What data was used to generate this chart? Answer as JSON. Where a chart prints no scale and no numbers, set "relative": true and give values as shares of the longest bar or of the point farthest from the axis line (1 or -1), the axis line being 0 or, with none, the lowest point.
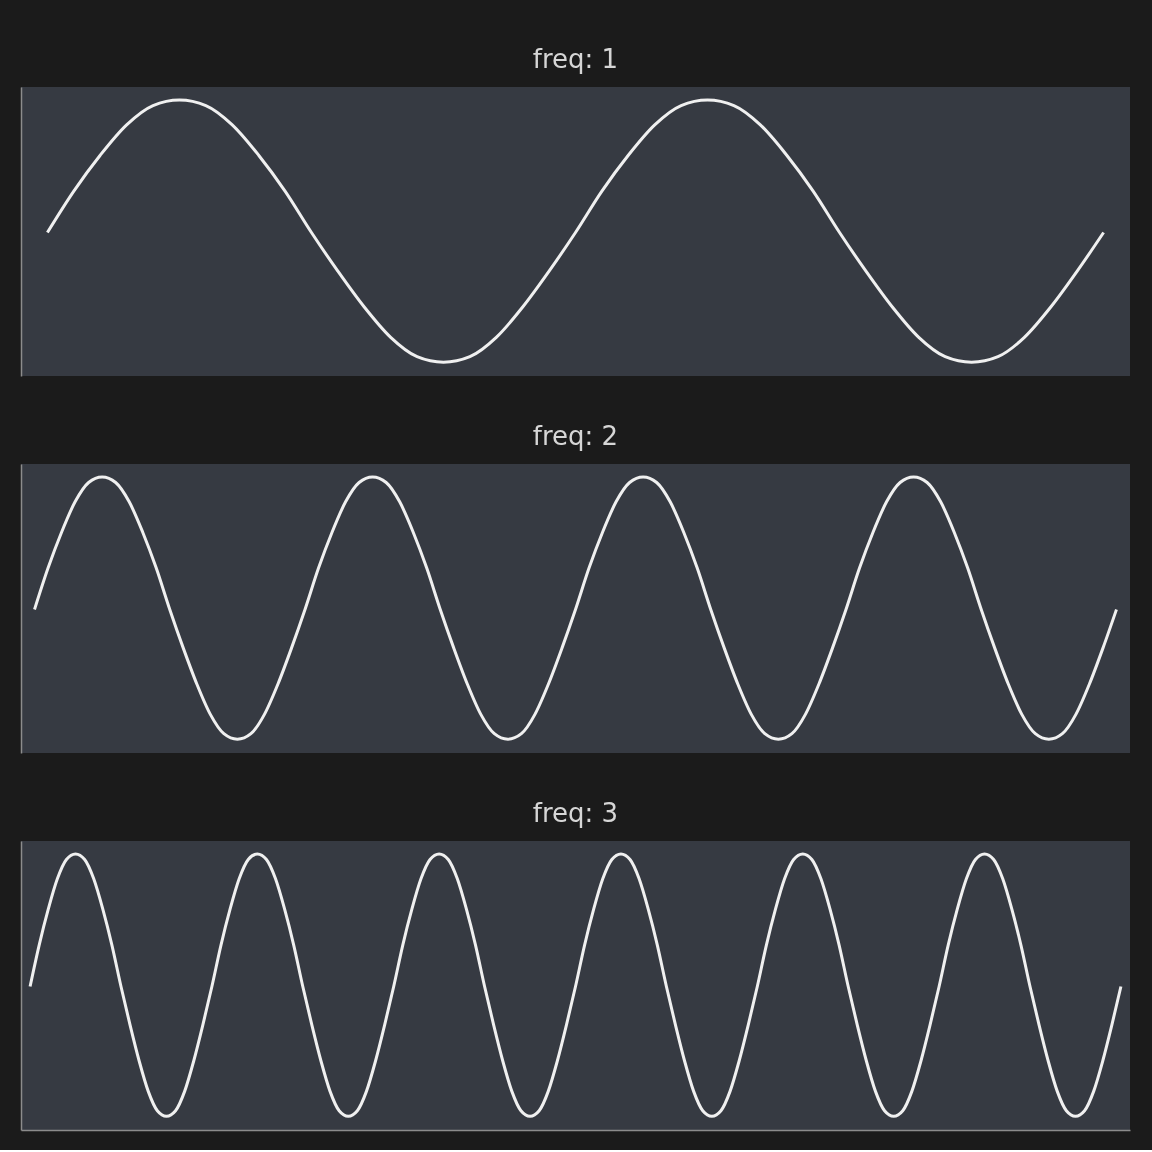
{
  "chart_data": [
    {
      "type": "line",
      "title": "freq: 1",
      "relative": true,
      "tick_labels": false,
      "line_style": "solid",
      "categories": [
        null,
        null,
        null,
        null,
        null,
        null,
        null,
        null,
        null,
        null,
        null,
        null,
        null,
        null,
        null,
        null,
        null,
        null,
        null,
        null,
        null,
        null,
        null,
        null,
        null,
        null,
        null,
        null,
        null,
        null,
        null,
        null,
        null,
        null,
        null,
        null,
        null,
        null,
        null,
        null,
        null
      ],
      "series": [
        {
          "color": "#f0f0f0",
          "values": [
            0.52,
            0.67,
            0.8,
            0.91,
            0.98,
            1,
            0.98,
            0.91,
            0.8,
            0.67,
            0.52,
            0.38,
            0.25,
            0.14,
            0.07,
            0.05,
            0.07,
            0.14,
            0.25,
            0.38,
            0.52,
            0.67,
            0.8,
            0.91,
            0.98,
            1,
            0.98,
            0.91,
            0.8,
            0.67,
            0.52,
            0.38,
            0.25,
            0.14,
            0.07,
            0.05,
            0.07,
            0.14,
            0.25,
            0.38,
            0.52
          ]
        }
      ]
    },
    {
      "type": "line",
      "title": "freq: 2",
      "relative": true,
      "tick_labels": false,
      "line_style": "solid",
      "categories": [
        null,
        null,
        null,
        null,
        null,
        null,
        null,
        null,
        null,
        null,
        null,
        null,
        null,
        null,
        null,
        null,
        null,
        null,
        null,
        null,
        null,
        null,
        null,
        null,
        null,
        null,
        null,
        null,
        null,
        null,
        null,
        null,
        null,
        null,
        null,
        null,
        null,
        null,
        null,
        null,
        null,
        null,
        null,
        null,
        null,
        null,
        null,
        null,
        null,
        null,
        null,
        null,
        null,
        null,
        null,
        null,
        null,
        null,
        null,
        null,
        null,
        null,
        null,
        null,
        null,
        null,
        null,
        null,
        null,
        null,
        null,
        null,
        null,
        null,
        null,
        null,
        null,
        null,
        null,
        null,
        null
      ],
      "series": [
        {
          "color": "#f0f0f0",
          "values": [
            0.52,
            0.67,
            0.8,
            0.91,
            0.98,
            1,
            0.98,
            0.91,
            0.8,
            0.67,
            0.52,
            0.38,
            0.25,
            0.14,
            0.07,
            0.05,
            0.07,
            0.14,
            0.25,
            0.38,
            0.52,
            0.67,
            0.8,
            0.91,
            0.98,
            1,
            0.98,
            0.91,
            0.8,
            0.67,
            0.52,
            0.38,
            0.25,
            0.14,
            0.07,
            0.05,
            0.07,
            0.14,
            0.25,
            0.38,
            0.52,
            0.67,
            0.8,
            0.91,
            0.98,
            1,
            0.98,
            0.91,
            0.8,
            0.67,
            0.52,
            0.38,
            0.25,
            0.14,
            0.07,
            0.05,
            0.07,
            0.14,
            0.25,
            0.38,
            0.52,
            0.67,
            0.8,
            0.91,
            0.98,
            1,
            0.98,
            0.91,
            0.8,
            0.67,
            0.52,
            0.38,
            0.25,
            0.14,
            0.07,
            0.05,
            0.07,
            0.14,
            0.25,
            0.38,
            0.52
          ]
        }
      ]
    },
    {
      "type": "line",
      "title": "freq: 3",
      "relative": true,
      "tick_labels": false,
      "line_style": "solid",
      "categories": [
        null,
        null,
        null,
        null,
        null,
        null,
        null,
        null,
        null,
        null,
        null,
        null,
        null,
        null,
        null,
        null,
        null,
        null,
        null,
        null,
        null,
        null,
        null,
        null,
        null,
        null,
        null,
        null,
        null,
        null,
        null,
        null,
        null,
        null,
        null,
        null,
        null,
        null,
        null,
        null,
        null,
        null,
        null,
        null,
        null,
        null,
        null,
        null,
        null,
        null,
        null,
        null,
        null,
        null,
        null,
        null,
        null,
        null,
        null,
        null,
        null,
        null,
        null,
        null,
        null,
        null,
        null,
        null,
        null,
        null,
        null,
        null,
        null,
        null,
        null,
        null,
        null,
        null,
        null,
        null,
        null,
        null,
        null,
        null,
        null,
        null,
        null,
        null,
        null,
        null,
        null,
        null,
        null,
        null,
        null,
        null,
        null,
        null,
        null,
        null,
        null,
        null,
        null,
        null,
        null,
        null,
        null,
        null,
        null,
        null,
        null,
        null,
        null,
        null,
        null,
        null,
        null,
        null,
        null,
        null,
        null
      ],
      "series": [
        {
          "color": "#f0f0f0",
          "values": [
            0.52,
            0.67,
            0.8,
            0.91,
            0.98,
            1,
            0.98,
            0.91,
            0.8,
            0.67,
            0.52,
            0.38,
            0.25,
            0.14,
            0.07,
            0.05,
            0.07,
            0.14,
            0.25,
            0.38,
            0.52,
            0.67,
            0.8,
            0.91,
            0.98,
            1,
            0.98,
            0.91,
            0.8,
            0.67,
            0.52,
            0.38,
            0.25,
            0.14,
            0.07,
            0.05,
            0.07,
            0.14,
            0.25,
            0.38,
            0.52,
            0.67,
            0.8,
            0.91,
            0.98,
            1,
            0.98,
            0.91,
            0.8,
            0.67,
            0.52,
            0.38,
            0.25,
            0.14,
            0.07,
            0.05,
            0.07,
            0.14,
            0.25,
            0.38,
            0.52,
            0.67,
            0.8,
            0.91,
            0.98,
            1,
            0.98,
            0.91,
            0.8,
            0.67,
            0.52,
            0.38,
            0.25,
            0.14,
            0.07,
            0.05,
            0.07,
            0.14,
            0.25,
            0.38,
            0.52,
            0.67,
            0.8,
            0.91,
            0.98,
            1,
            0.98,
            0.91,
            0.8,
            0.67,
            0.52,
            0.38,
            0.25,
            0.14,
            0.07,
            0.05,
            0.07,
            0.14,
            0.25,
            0.38,
            0.52,
            0.67,
            0.8,
            0.91,
            0.98,
            1,
            0.98,
            0.91,
            0.8,
            0.67,
            0.52,
            0.38,
            0.25,
            0.14,
            0.07,
            0.05,
            0.07,
            0.14,
            0.25,
            0.38,
            0.52
          ]
        }
      ]
    }
  ]
}
